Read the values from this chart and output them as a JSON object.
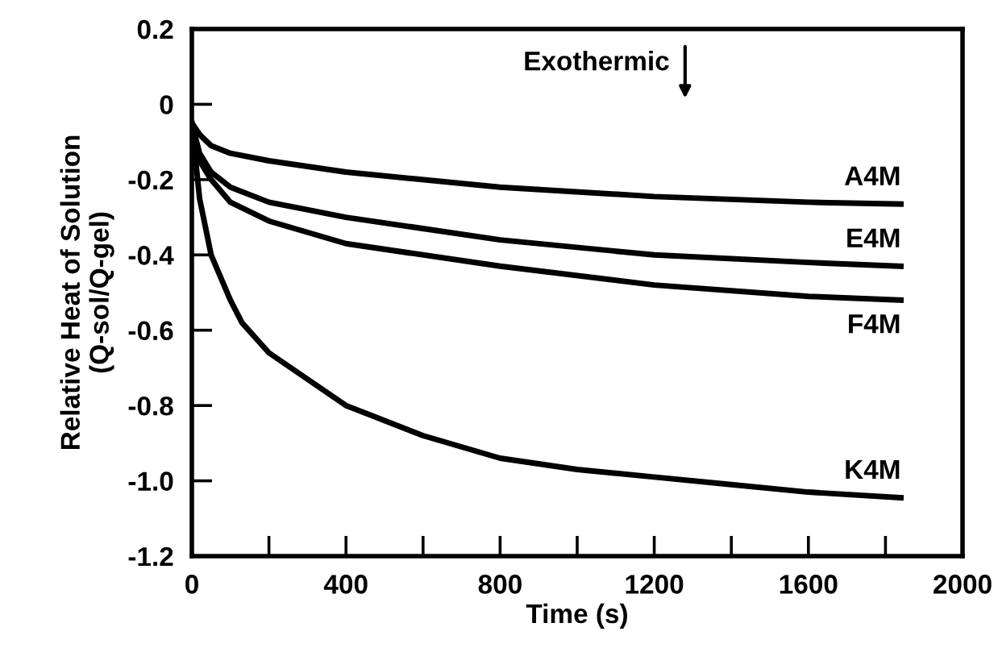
{
  "chart_data": {
    "type": "line",
    "xlabel": "Time (s)",
    "ylabel": "Relative Heat of Solution\n(Q-sol/Q-gel)",
    "xlim": [
      0,
      2000
    ],
    "ylim": [
      -1.2,
      0.2
    ],
    "xticks": [
      0,
      {
        "value": 200,
        "label": null
      },
      400,
      {
        "value": 600,
        "label": null
      },
      800,
      {
        "value": 1000,
        "label": null
      },
      1200,
      {
        "value": 1400,
        "label": null
      },
      1600,
      {
        "value": 1800,
        "label": null
      },
      2000
    ],
    "yticks": [
      0.2,
      0,
      -0.2,
      -0.4,
      -0.6,
      -0.8,
      {
        "value": -1.0,
        "label": "-1.0"
      },
      -1.2
    ],
    "grid": false,
    "legend": false,
    "marker": "none",
    "line_style": "solid",
    "annotations": [
      "Exothermic"
    ],
    "series": [
      {
        "name": "A4M",
        "color": "#000000",
        "x": [
          0,
          20,
          50,
          100,
          200,
          400,
          800,
          1200,
          1600,
          1840
        ],
        "values": [
          -0.05,
          -0.08,
          -0.11,
          -0.13,
          -0.15,
          -0.18,
          -0.22,
          -0.245,
          -0.26,
          -0.265
        ]
      },
      {
        "name": "E4M",
        "color": "#000000",
        "x": [
          0,
          20,
          50,
          100,
          200,
          400,
          800,
          1200,
          1600,
          1840
        ],
        "values": [
          -0.05,
          -0.13,
          -0.18,
          -0.22,
          -0.26,
          -0.3,
          -0.36,
          -0.4,
          -0.42,
          -0.43
        ]
      },
      {
        "name": "F4M",
        "color": "#000000",
        "x": [
          0,
          20,
          50,
          100,
          200,
          400,
          800,
          1200,
          1600,
          1840
        ],
        "values": [
          -0.05,
          -0.15,
          -0.2,
          -0.26,
          -0.31,
          -0.37,
          -0.43,
          -0.48,
          -0.51,
          -0.52
        ]
      },
      {
        "name": "K4M",
        "color": "#000000",
        "x": [
          0,
          5,
          20,
          50,
          100,
          130,
          200,
          400,
          600,
          800,
          1000,
          1200,
          1400,
          1600,
          1840
        ],
        "values": [
          -0.05,
          -0.1,
          -0.25,
          -0.4,
          -0.52,
          -0.58,
          -0.66,
          -0.8,
          -0.88,
          -0.94,
          -0.97,
          -0.99,
          -1.01,
          -1.03,
          -1.045
        ]
      }
    ]
  }
}
